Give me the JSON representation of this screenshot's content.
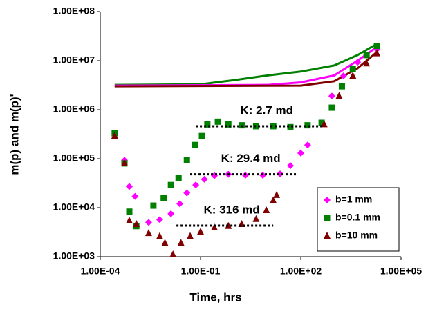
{
  "chart_data": {
    "type": "scatter",
    "xlabel": "Time, hrs",
    "ylabel": "m(p) and m(p)'",
    "xscale": "log",
    "yscale": "log",
    "xlim": [
      0.0001,
      100000
    ],
    "ylim": [
      1000,
      100000000
    ],
    "xticks": [
      {
        "value": 0.0001,
        "label": "1.00E-04"
      },
      {
        "value": 0.1,
        "label": "1.00E-01"
      },
      {
        "value": 100,
        "label": "1.00E+02"
      },
      {
        "value": 100000,
        "label": "1.00E+05"
      }
    ],
    "yticks": [
      {
        "value": 1000,
        "label": "1.00E+03"
      },
      {
        "value": 10000,
        "label": "1.00E+04"
      },
      {
        "value": 100000,
        "label": "1.00E+05"
      },
      {
        "value": 1000000,
        "label": "1.00E+06"
      },
      {
        "value": 10000000,
        "label": "1.00E+07"
      },
      {
        "value": 100000000,
        "label": "1.00E+08"
      }
    ],
    "legend": "lower right",
    "series": [
      {
        "name": "b=1 mm",
        "color": "#ff00ff",
        "marker": "diamond",
        "x": [
          0.00053,
          0.00074,
          0.0011,
          0.0028,
          0.006,
          0.013,
          0.024,
          0.039,
          0.072,
          0.13,
          0.26,
          0.68,
          2.2,
          7.3,
          24,
          49,
          100,
          160,
          850,
          1900,
          5000,
          19000
        ],
        "values": [
          93000,
          27000,
          17000,
          5000,
          5700,
          7500,
          12000,
          20000,
          29000,
          38000,
          45000,
          48000,
          46000,
          46000,
          49000,
          72000,
          130000,
          190000,
          1900000,
          4900000,
          9300000,
          17000000
        ]
      },
      {
        "name": "b=0.1 mm",
        "color": "#008000",
        "marker": "square",
        "x": [
          0.00027,
          0.00053,
          0.00074,
          0.0012,
          0.0039,
          0.0079,
          0.013,
          0.022,
          0.039,
          0.069,
          0.11,
          0.16,
          0.33,
          0.68,
          1.7,
          4.6,
          15,
          49,
          160,
          420,
          850,
          1700,
          3600,
          9300,
          19000
        ],
        "values": [
          330000,
          80000,
          8300,
          4200,
          11000,
          16000,
          29000,
          40000,
          94000,
          190000,
          290000,
          500000,
          570000,
          500000,
          480000,
          460000,
          460000,
          440000,
          480000,
          540000,
          1100000,
          3000000,
          6800000,
          13000000,
          20000000
        ]
      },
      {
        "name": "b=10 mm",
        "color": "#800000",
        "marker": "triangle",
        "x": [
          0.00027,
          0.00053,
          0.00074,
          0.0012,
          0.0028,
          0.006,
          0.0086,
          0.015,
          0.026,
          0.049,
          0.1,
          0.26,
          0.68,
          1.7,
          4.6,
          9.3,
          15,
          19,
          500,
          1400,
          3600,
          9300,
          19000
        ],
        "values": [
          290000,
          80000,
          5400,
          4600,
          3000,
          2600,
          1900,
          1100,
          1900,
          2600,
          3200,
          3900,
          4200,
          4600,
          5800,
          8800,
          14000,
          18000,
          500000,
          1900000,
          4900000,
          8700000,
          14000000
        ]
      },
      {
        "color": "#008000",
        "style": "line",
        "x": [
          0.00027,
          0.1,
          1,
          10,
          100,
          1000,
          5000,
          19000
        ],
        "values": [
          3200000,
          3300000,
          4000000,
          5000000,
          6000000,
          8000000,
          13000000,
          22000000
        ]
      },
      {
        "color": "#ff00ff",
        "style": "line",
        "x": [
          0.00027,
          10,
          100,
          1000,
          5000,
          19000
        ],
        "values": [
          3100000,
          3200000,
          3600000,
          5000000,
          10000000,
          19000000
        ]
      },
      {
        "color": "#800000",
        "style": "line",
        "x": [
          0.00027,
          100,
          1000,
          5000,
          19000
        ],
        "values": [
          3000000,
          3100000,
          3800000,
          7000000,
          15000000
        ]
      }
    ],
    "annotations": [
      {
        "text": "K: 2.7 md",
        "value": 460000,
        "x": [
          0.072,
          490
        ]
      },
      {
        "text": "K: 29.4 md",
        "value": 48000,
        "x": [
          0.049,
          80
        ]
      },
      {
        "text": "K: 316 md",
        "value": 4300,
        "x": [
          0.019,
          15
        ]
      }
    ]
  }
}
